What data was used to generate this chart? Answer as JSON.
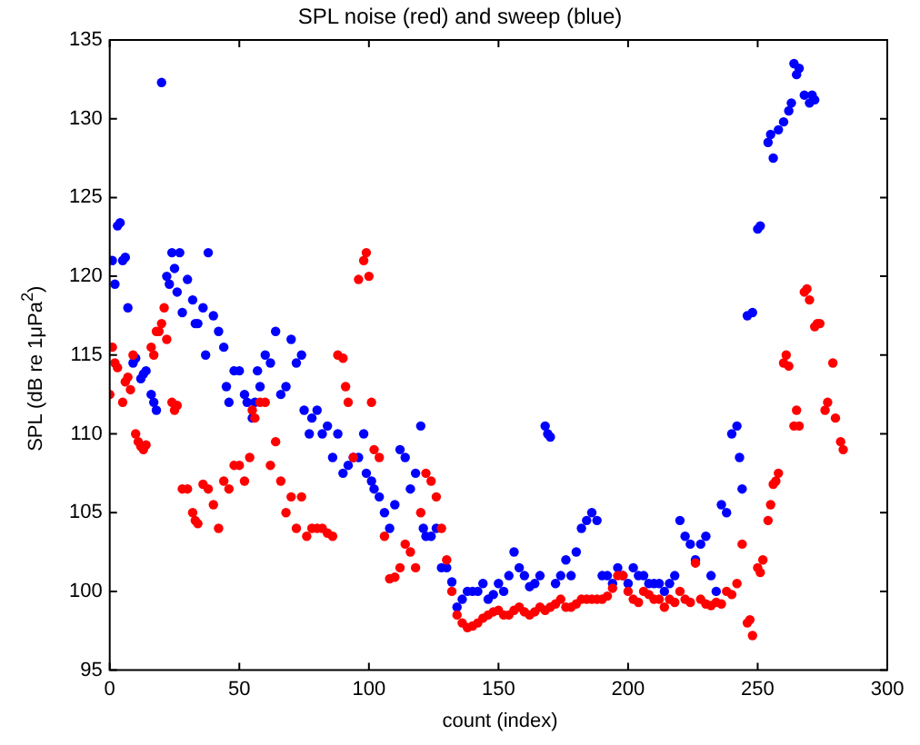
{
  "chart_data": {
    "type": "scatter",
    "title": "SPL noise (red) and sweep (blue)",
    "xlabel": "count (index)",
    "ylabel": "SPL (dB re 1μPa$^{2}$)",
    "xlim": [
      0,
      300
    ],
    "xticks": [
      0,
      50,
      100,
      150,
      200,
      250,
      300
    ],
    "ylim": [
      95,
      135
    ],
    "yticks": [
      95,
      100,
      105,
      110,
      115,
      120,
      125,
      130,
      135
    ],
    "grid": false,
    "legend": false,
    "marker": "circle",
    "series": [
      {
        "color": "#ff0000",
        "x": [
          0,
          1,
          2,
          3,
          5,
          6,
          7,
          8,
          9,
          10,
          11,
          12,
          13,
          14,
          16,
          17,
          18,
          19,
          20,
          21,
          22,
          24,
          25,
          26,
          28,
          30,
          32,
          33,
          34,
          36,
          38,
          40,
          42,
          44,
          46,
          48,
          50,
          52,
          54,
          55,
          56,
          58,
          60,
          62,
          64,
          66,
          68,
          70,
          72,
          74,
          76,
          78,
          80,
          82,
          84,
          86,
          88,
          90,
          91,
          92,
          94,
          96,
          98,
          99,
          100,
          101,
          102,
          104,
          106,
          108,
          110,
          112,
          114,
          116,
          118,
          120,
          122,
          124,
          126,
          128,
          130,
          132,
          134,
          136,
          138,
          140,
          142,
          144,
          146,
          148,
          150,
          152,
          154,
          156,
          158,
          160,
          162,
          164,
          166,
          168,
          170,
          172,
          174,
          176,
          178,
          180,
          182,
          184,
          186,
          188,
          190,
          192,
          194,
          196,
          198,
          200,
          202,
          204,
          206,
          208,
          210,
          212,
          214,
          216,
          218,
          220,
          222,
          224,
          226,
          228,
          230,
          232,
          234,
          236,
          238,
          240,
          242,
          244,
          246,
          247,
          248,
          250,
          251,
          252,
          254,
          255,
          256,
          257,
          258,
          260,
          261,
          262,
          264,
          265,
          266,
          268,
          269,
          270,
          272,
          273,
          274,
          276,
          277,
          279,
          280,
          282,
          283
        ],
        "values": [
          112.5,
          115.5,
          114.5,
          114.2,
          112,
          113.3,
          113.6,
          112.8,
          115,
          110,
          109.5,
          109.2,
          109,
          109.3,
          115.5,
          115,
          116.5,
          116.5,
          117,
          118,
          116,
          112,
          111.5,
          111.8,
          106.5,
          106.5,
          105,
          104.5,
          104.3,
          106.8,
          106.5,
          105.5,
          104,
          107,
          106.5,
          108,
          108,
          107,
          108.5,
          111.5,
          111,
          112,
          112,
          108,
          109.5,
          107,
          105,
          106,
          104,
          106,
          103.5,
          104,
          104,
          104,
          103.7,
          103.5,
          115,
          114.8,
          113,
          112,
          108.5,
          119.8,
          121,
          121.5,
          120,
          112,
          109,
          108.5,
          103.5,
          100.8,
          100.9,
          101.5,
          103,
          102.5,
          101.5,
          105,
          107.5,
          107,
          106,
          104,
          102,
          100,
          98.5,
          98,
          97.7,
          97.8,
          98,
          98.3,
          98.5,
          98.7,
          98.8,
          98.5,
          98.5,
          98.8,
          99,
          98.7,
          98.5,
          98.7,
          99,
          98.8,
          99,
          99.2,
          99.5,
          99,
          99,
          99.2,
          99.5,
          99.5,
          99.5,
          99.5,
          99.5,
          99.7,
          100.2,
          101,
          101,
          100,
          99.5,
          99.3,
          100,
          99.8,
          99.5,
          99.5,
          99,
          99.5,
          99.3,
          100,
          99.5,
          99.3,
          101.8,
          99.5,
          99.2,
          99.1,
          99.3,
          99.2,
          100,
          99.8,
          100.5,
          103,
          98,
          98.2,
          97.2,
          101.5,
          101.2,
          102,
          104.5,
          105.5,
          106.8,
          107,
          107.5,
          114.5,
          115,
          114.3,
          110.5,
          111.5,
          110.5,
          119,
          119.2,
          118.5,
          116.8,
          117,
          117,
          111.5,
          112,
          114.5,
          111,
          109.5,
          109
        ]
      },
      {
        "color": "#0000ff",
        "x": [
          1,
          2,
          3,
          4,
          5,
          6,
          7,
          9,
          10,
          12,
          13,
          14,
          16,
          17,
          18,
          20,
          22,
          23,
          24,
          25,
          26,
          27,
          28,
          30,
          32,
          33,
          34,
          36,
          37,
          38,
          40,
          42,
          44,
          45,
          46,
          48,
          50,
          52,
          53,
          55,
          56,
          57,
          58,
          60,
          62,
          64,
          66,
          68,
          70,
          72,
          74,
          75,
          77,
          78,
          80,
          82,
          84,
          86,
          88,
          90,
          92,
          94,
          96,
          98,
          99,
          101,
          102,
          104,
          106,
          108,
          110,
          112,
          114,
          116,
          118,
          120,
          121,
          122,
          124,
          126,
          128,
          130,
          132,
          134,
          136,
          138,
          140,
          142,
          144,
          146,
          148,
          150,
          152,
          154,
          156,
          158,
          160,
          162,
          164,
          166,
          168,
          169,
          170,
          172,
          174,
          176,
          178,
          180,
          182,
          184,
          186,
          188,
          190,
          192,
          194,
          196,
          198,
          200,
          202,
          204,
          206,
          208,
          210,
          212,
          214,
          216,
          218,
          220,
          222,
          224,
          226,
          228,
          230,
          232,
          234,
          236,
          238,
          240,
          242,
          243,
          244,
          246,
          248,
          250,
          251,
          254,
          255,
          256,
          258,
          260,
          262,
          263,
          264,
          265,
          266,
          268,
          270,
          271,
          272
        ],
        "values": [
          121,
          119.5,
          123.2,
          123.4,
          121,
          121.2,
          118,
          114.5,
          114.8,
          113.5,
          113.8,
          114,
          112.5,
          112,
          111.5,
          132.3,
          120,
          119.5,
          121.5,
          120.5,
          119,
          121.5,
          117.7,
          119.8,
          118.5,
          117,
          117,
          118,
          115,
          121.5,
          117.5,
          116.5,
          115.5,
          113,
          112,
          114,
          114,
          112.5,
          112,
          111,
          112,
          114,
          113,
          115,
          114.5,
          116.5,
          112.5,
          113,
          116,
          114.5,
          115,
          111.5,
          110,
          111,
          111.5,
          110,
          110.5,
          108.5,
          110,
          107.5,
          108,
          108.5,
          108.5,
          110,
          107.5,
          107,
          106.5,
          106,
          105,
          104,
          105.5,
          109,
          108.5,
          106.5,
          107.5,
          110.5,
          104,
          103.5,
          103.5,
          104,
          101.5,
          101.5,
          100.6,
          99,
          99.5,
          100,
          100,
          100,
          100.5,
          99.5,
          99.8,
          100.5,
          100,
          101,
          102.5,
          101.5,
          101,
          100.3,
          100.5,
          101,
          110.5,
          110,
          109.8,
          100.5,
          101,
          102,
          101,
          102.5,
          104,
          104.5,
          105,
          104.5,
          101,
          101,
          100.5,
          101.5,
          101,
          100.5,
          101.5,
          101,
          101,
          100.5,
          100.5,
          100.5,
          100,
          100.5,
          101,
          104.5,
          103.5,
          103,
          102,
          103,
          103.5,
          101,
          100,
          105.5,
          105,
          110,
          110.5,
          108.5,
          106.5,
          117.5,
          117.7,
          123,
          123.2,
          128.5,
          129,
          127.5,
          129.3,
          129.8,
          130.5,
          131,
          133.5,
          132.8,
          133.2,
          131.5,
          131,
          131.5,
          131.2
        ]
      }
    ]
  }
}
